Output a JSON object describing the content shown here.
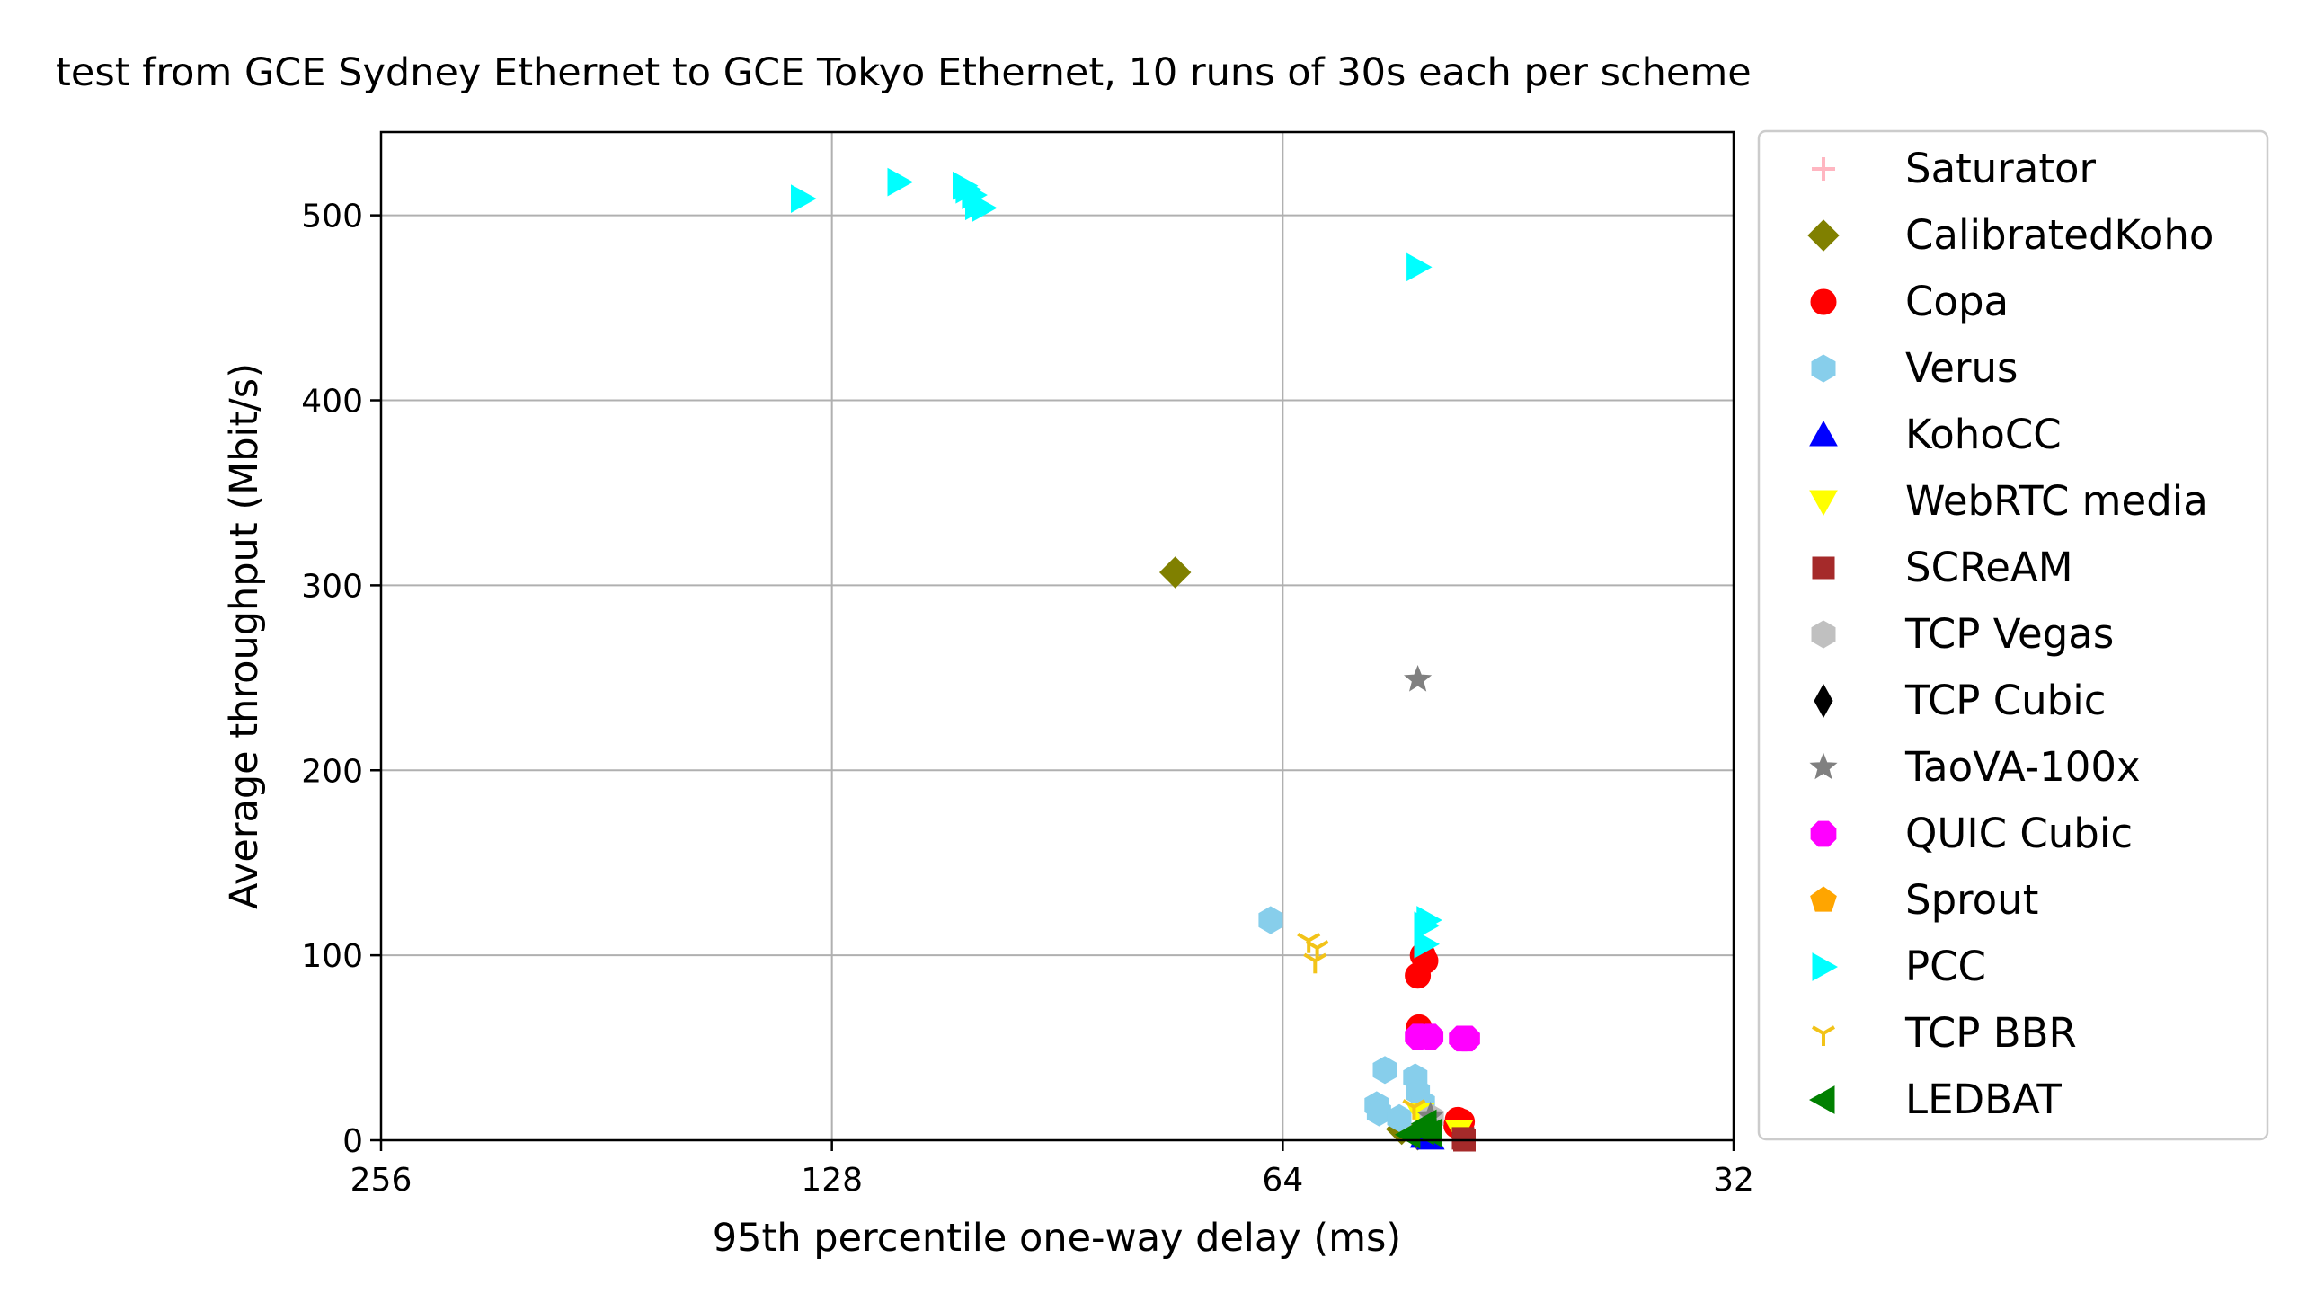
{
  "chart_data": {
    "type": "scatter",
    "title": "test from GCE Sydney Ethernet to GCE Tokyo Ethernet, 10 runs of 30s each per scheme",
    "xlabel": "95th percentile one-way delay (ms)",
    "ylabel": "Average throughput (Mbit/s)",
    "xscale": "log2",
    "xaxis_inverted": true,
    "xlim": [
      256,
      32
    ],
    "ylim": [
      0,
      545
    ],
    "xticks": [
      256,
      128,
      64,
      32
    ],
    "xtick_labels": [
      "256",
      "128",
      "64",
      "32"
    ],
    "yticks": [
      0,
      100,
      200,
      300,
      400,
      500
    ],
    "ytick_labels": [
      "0",
      "100",
      "200",
      "300",
      "400",
      "500"
    ],
    "grid": true,
    "legend_position": "outside-right",
    "series": [
      {
        "name": "Saturator",
        "marker": "plus",
        "color": "#ffb6c1",
        "points": []
      },
      {
        "name": "CalibratedKoho",
        "marker": "diamond",
        "color": "#808000",
        "points": [
          [
            75.5,
            307
          ],
          [
            53.3,
            6
          ],
          [
            52.0,
            3
          ]
        ]
      },
      {
        "name": "Copa",
        "marker": "circle",
        "color": "#ff0000",
        "points": [
          [
            51.6,
            100
          ],
          [
            51.4,
            97
          ],
          [
            52.0,
            89
          ],
          [
            51.9,
            61
          ],
          [
            48.9,
            11
          ],
          [
            48.6,
            10
          ],
          [
            49.0,
            8
          ]
        ]
      },
      {
        "name": "Verus",
        "marker": "hexagon",
        "color": "#87ceeb",
        "points": [
          [
            65.2,
            119
          ],
          [
            54.7,
            38
          ],
          [
            52.2,
            34
          ],
          [
            55.4,
            19
          ],
          [
            55.2,
            15
          ],
          [
            52.0,
            26
          ],
          [
            51.6,
            20
          ],
          [
            53.5,
            12
          ]
        ]
      },
      {
        "name": "KohoCC",
        "marker": "triangle-up",
        "color": "#0000ff",
        "points": [
          [
            51.5,
            2
          ],
          [
            51.0,
            1
          ]
        ]
      },
      {
        "name": "WebRTC media",
        "marker": "triangle-down",
        "color": "#ffff00",
        "points": [
          [
            51.8,
            14
          ],
          [
            48.8,
            5
          ]
        ]
      },
      {
        "name": "SCReAM",
        "marker": "square",
        "color": "#a52a2a",
        "points": [
          [
            48.5,
            1
          ],
          [
            48.4,
            0
          ]
        ]
      },
      {
        "name": "TCP Vegas",
        "marker": "hexagon",
        "color": "#c0c0c0",
        "points": [
          [
            50.9,
            12
          ]
        ]
      },
      {
        "name": "TCP Cubic",
        "marker": "thin-diamond",
        "color": "#000000",
        "points": []
      },
      {
        "name": "TaoVA-100x",
        "marker": "star",
        "color": "#808080",
        "points": [
          [
            52.0,
            249
          ],
          [
            51.0,
            13
          ]
        ]
      },
      {
        "name": "QUIC Cubic",
        "marker": "octagon",
        "color": "#ff00ff",
        "points": [
          [
            52.0,
            56
          ],
          [
            51.0,
            56
          ],
          [
            48.2,
            55
          ],
          [
            48.6,
            55
          ]
        ]
      },
      {
        "name": "Sprout",
        "marker": "pentagon",
        "color": "#ffa500",
        "points": []
      },
      {
        "name": "PCC",
        "marker": "triangle-right",
        "color": "#00ffff",
        "points": [
          [
            104.0,
            514
          ],
          [
            103.0,
            511
          ],
          [
            102.5,
            505
          ],
          [
            101.5,
            504
          ],
          [
            115.5,
            518
          ],
          [
            104.5,
            516
          ],
          [
            134.0,
            509
          ],
          [
            52.0,
            472
          ],
          [
            51.2,
            119
          ],
          [
            51.4,
            116
          ],
          [
            51.4,
            106
          ]
        ]
      },
      {
        "name": "TCP BBR",
        "marker": "tri-down",
        "color": "#f2c318",
        "points": [
          [
            61.5,
            108
          ],
          [
            60.7,
            104
          ],
          [
            60.9,
            97
          ],
          [
            52.3,
            18
          ]
        ]
      },
      {
        "name": "LEDBAT",
        "marker": "triangle-left",
        "color": "#008000",
        "points": [
          [
            52.7,
            3
          ],
          [
            51.4,
            9
          ],
          [
            51.6,
            5
          ],
          [
            51.0,
            4
          ]
        ]
      }
    ]
  }
}
